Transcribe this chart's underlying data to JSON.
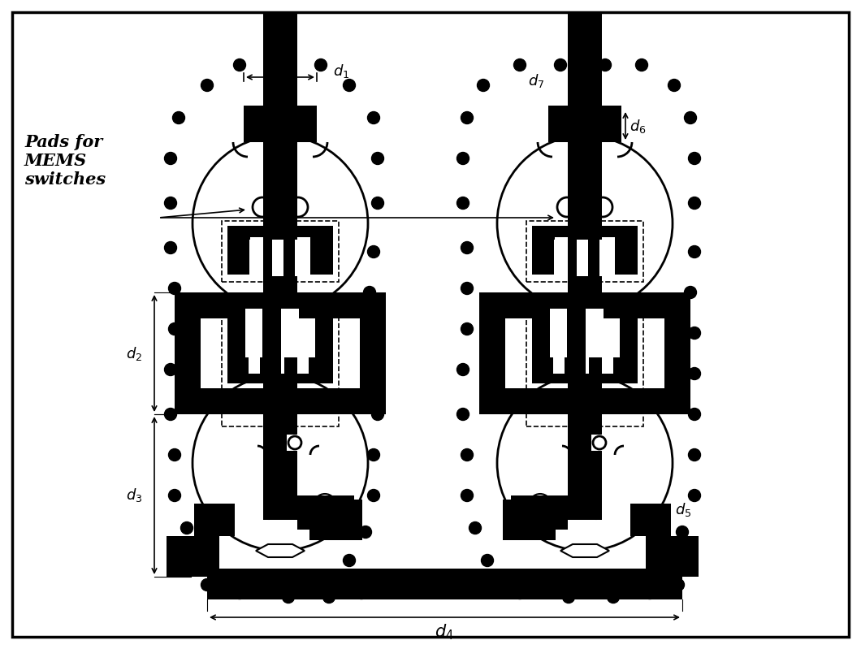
{
  "bg_color": "#ffffff",
  "fig_width": 10.6,
  "fig_height": 7.99,
  "label_d1": "$d_1$",
  "label_d2": "$d_2$",
  "label_d3": "$d_3$",
  "label_d4": "$d_4$",
  "label_d5": "$d_5$",
  "label_d6": "$d_6$",
  "label_d7": "$d_7$",
  "annotation_text": "Pads for\nMEMS\nswitches"
}
